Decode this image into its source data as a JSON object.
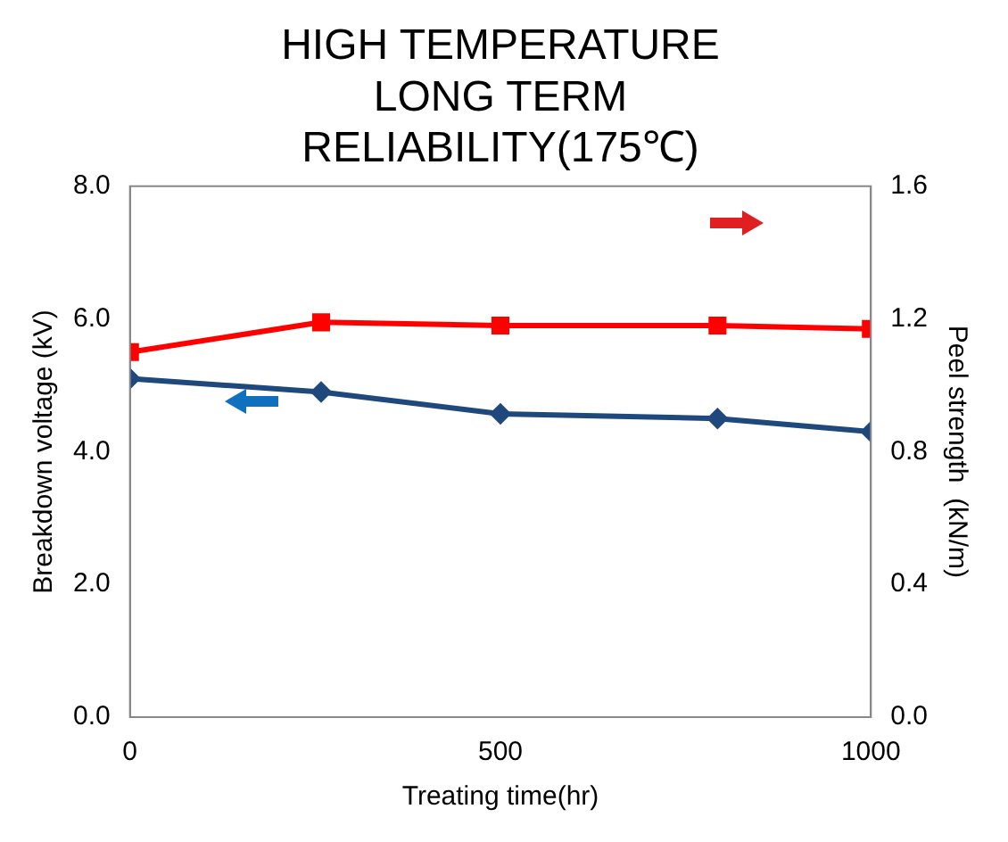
{
  "chart_data": {
    "type": "line",
    "title": "HIGH TEMPERATURE LONG TERM RELIABILITY(175℃)",
    "xlabel": "Treating time(hr)",
    "ylabel": "Breakdown voltage (kV)",
    "y2label": "Peel strength  (kN/m)",
    "x": [
      0,
      258,
      500,
      793,
      1000
    ],
    "series": [
      {
        "color": "#1f497d",
        "values": [
          5.1,
          4.9,
          4.57,
          4.5,
          4.3
        ],
        "marker": "diamond"
      },
      {
        "color": "#ff0000",
        "values": [
          1.1,
          1.19,
          1.18,
          1.18,
          1.17
        ],
        "axis": "y2",
        "marker": "square"
      }
    ],
    "xlim": [
      0,
      1000
    ],
    "xticks": [
      0,
      500,
      1000
    ],
    "ylim": [
      0,
      8
    ],
    "yticks": [
      {
        "value": 0,
        "label": "0.0"
      },
      {
        "value": 2,
        "label": "2.0"
      },
      {
        "value": 4,
        "label": "4.0"
      },
      {
        "value": 6,
        "label": "6.0"
      },
      {
        "value": 8,
        "label": "8.0"
      }
    ],
    "y2lim": [
      0,
      1.6
    ],
    "y2ticks": [
      {
        "value": 0,
        "label": "0.0"
      },
      {
        "value": 0.4,
        "label": "0.4"
      },
      {
        "value": 0.8,
        "label": "0.8"
      },
      {
        "value": 1.2,
        "label": "1.2"
      },
      {
        "value": 1.6,
        "label": "1.6"
      }
    ],
    "grid": false,
    "legend": false,
    "line_style": "solid"
  }
}
